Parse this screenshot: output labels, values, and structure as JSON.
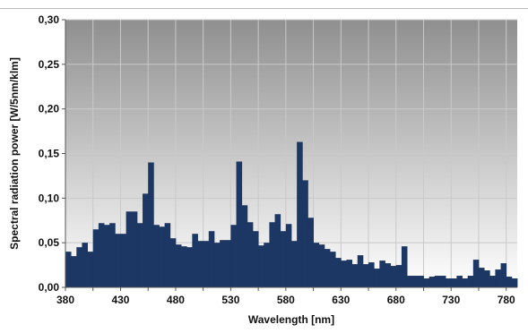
{
  "colors": {
    "bar": "#1c3763",
    "grid": "#c9c9c9",
    "axis": "#555555",
    "plot_bg_top": "#8f8f8f",
    "plot_bg_bottom": "#ffffff"
  },
  "chart_data": {
    "type": "bar",
    "title": "",
    "xlabel": "Wavelength [nm]",
    "ylabel": "Spectral radiation power [W/5nm/klm]",
    "xlim": [
      380,
      790
    ],
    "ylim": [
      0,
      0.3
    ],
    "grid": true,
    "legend": "none",
    "bin_width_nm": 5,
    "x_ticks": [
      380,
      405,
      430,
      455,
      480,
      505,
      530,
      555,
      580,
      605,
      630,
      655,
      680,
      705,
      730,
      755,
      780
    ],
    "x_tick_labels": [
      "380",
      "",
      "430",
      "",
      "480",
      "",
      "530",
      "",
      "580",
      "",
      "630",
      "",
      "680",
      "",
      "730",
      "",
      "780"
    ],
    "y_ticks": [
      0,
      0.05,
      0.1,
      0.15,
      0.2,
      0.25,
      0.3
    ],
    "y_tick_labels": [
      "0,00",
      "0,05",
      "0,10",
      "0,15",
      "0,20",
      "0,25",
      "0,30"
    ],
    "x": [
      380,
      385,
      390,
      395,
      400,
      405,
      410,
      415,
      420,
      425,
      430,
      435,
      440,
      445,
      450,
      455,
      460,
      465,
      470,
      475,
      480,
      485,
      490,
      495,
      500,
      505,
      510,
      515,
      520,
      525,
      530,
      535,
      540,
      545,
      550,
      555,
      560,
      565,
      570,
      575,
      580,
      585,
      590,
      595,
      600,
      605,
      610,
      615,
      620,
      625,
      630,
      635,
      640,
      645,
      650,
      655,
      660,
      665,
      670,
      675,
      680,
      685,
      690,
      695,
      700,
      705,
      710,
      715,
      720,
      725,
      730,
      735,
      740,
      745,
      750,
      755,
      760,
      765,
      770,
      775,
      780,
      785
    ],
    "values": [
      0.04,
      0.035,
      0.045,
      0.05,
      0.04,
      0.065,
      0.072,
      0.07,
      0.072,
      0.06,
      0.06,
      0.085,
      0.085,
      0.072,
      0.105,
      0.14,
      0.07,
      0.068,
      0.072,
      0.055,
      0.048,
      0.046,
      0.045,
      0.06,
      0.052,
      0.052,
      0.063,
      0.05,
      0.053,
      0.053,
      0.07,
      0.141,
      0.092,
      0.073,
      0.063,
      0.047,
      0.05,
      0.073,
      0.082,
      0.063,
      0.071,
      0.052,
      0.163,
      0.12,
      0.078,
      0.05,
      0.048,
      0.043,
      0.04,
      0.033,
      0.03,
      0.031,
      0.026,
      0.036,
      0.026,
      0.028,
      0.021,
      0.03,
      0.027,
      0.024,
      0.025,
      0.046,
      0.013,
      0.013,
      0.013,
      0.01,
      0.012,
      0.013,
      0.013,
      0.01,
      0.01,
      0.013,
      0.01,
      0.013,
      0.031,
      0.022,
      0.019,
      0.013,
      0.02,
      0.027,
      0.012,
      0.01
    ]
  }
}
